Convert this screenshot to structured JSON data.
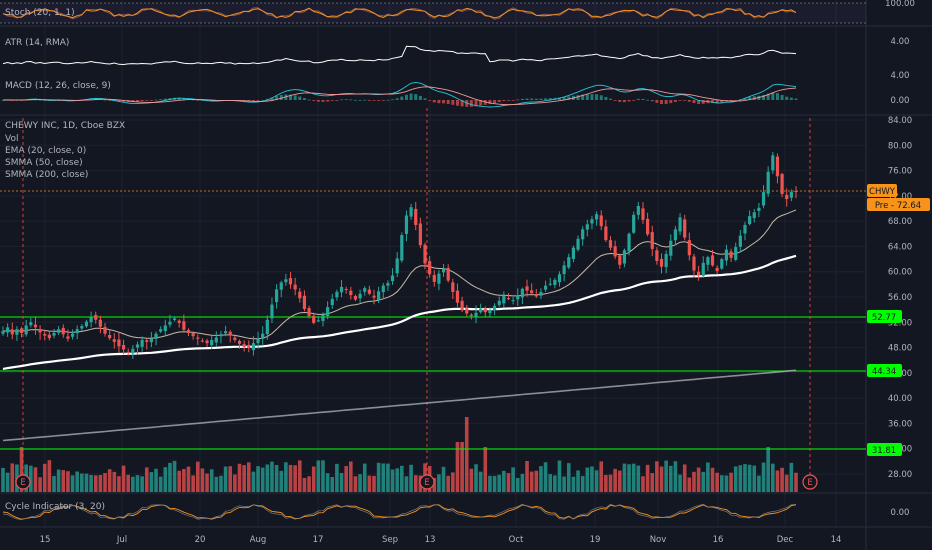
{
  "colors": {
    "background": "#131722",
    "up": "#26a69a",
    "down": "#ef5350",
    "grid": "#1e222d",
    "green_line": "#00ff00",
    "orange": "#f7931a",
    "white": "#ffffff",
    "gray": "#b2b5be"
  },
  "panes": {
    "stoch": {
      "label": "Stoch (20, 1, 1)",
      "tick_labels": [
        "100.00"
      ]
    },
    "atr": {
      "label": "ATR (14, RMA)",
      "tick_labels": [
        "4.00"
      ]
    },
    "macd": {
      "label": "MACD (12, 26, close, 9)",
      "tick_labels": [
        "4.00",
        "0.00"
      ]
    },
    "main": {
      "title": "CHEWY INC, 1D, Cboe BZX",
      "legend": [
        "Vol",
        "EMA (20, close, 0)",
        "SMMA (50, close)",
        "SMMA (200, close)"
      ],
      "tick_labels": [
        "84.00",
        "80.00",
        "76.00",
        "72.00",
        "68.00",
        "64.00",
        "60.00",
        "56.00",
        "52.00",
        "48.00",
        "44.00",
        "40.00",
        "36.00",
        "32.00",
        "28.00"
      ]
    },
    "cycle": {
      "label": "Cycle Indicator (3, 20)",
      "tick_labels": [
        "0.00"
      ]
    }
  },
  "price_tags": {
    "symbol": "CHWY",
    "pre": "Pre - 72.64",
    "levels": [
      "52.77",
      "44.34",
      "31.81"
    ]
  },
  "x_axis": [
    "15",
    "Jul",
    "20",
    "Aug",
    "17",
    "Sep",
    "13",
    "Oct",
    "19",
    "Nov",
    "16",
    "Dec",
    "14"
  ],
  "event_markers": [
    "E",
    "E",
    "E"
  ],
  "chart_data": {
    "type": "candlestick",
    "ylim": [
      24,
      86
    ],
    "horizontal_levels": [
      52.77,
      44.34,
      31.81
    ],
    "dashed_level": 72.64,
    "close": [
      50.6,
      51.2,
      50.1,
      50.9,
      50.3,
      51.5,
      52.0,
      51.2,
      50.4,
      49.9,
      49.5,
      50.3,
      50.9,
      50.1,
      49.4,
      50.2,
      50.9,
      51.4,
      52.1,
      52.8,
      52.4,
      51.3,
      50.2,
      49.5,
      48.9,
      48.2,
      47.7,
      47.3,
      47.8,
      48.5,
      49.2,
      48.9,
      49.4,
      50.2,
      50.9,
      51.5,
      52.1,
      52.6,
      51.9,
      50.8,
      50.3,
      49.8,
      49.4,
      49.0,
      48.7,
      49.2,
      49.6,
      50.1,
      50.6,
      49.9,
      49.2,
      48.6,
      48.1,
      47.9,
      48.7,
      49.4,
      50.2,
      52.4,
      54.8,
      57.2,
      58.3,
      58.8,
      58.0,
      57.2,
      55.8,
      54.1,
      53.0,
      51.9,
      52.3,
      53.2,
      54.4,
      55.7,
      56.8,
      57.6,
      57.2,
      56.3,
      55.6,
      56.5,
      57.4,
      56.5,
      55.9,
      56.9,
      57.8,
      58.2,
      59.4,
      62.1,
      65.8,
      68.9,
      70.2,
      67.4,
      64.2,
      61.3,
      59.6,
      58.4,
      59.7,
      60.5,
      58.6,
      56.8,
      55.1,
      53.9,
      53.4,
      53.0,
      53.5,
      54.2,
      53.6,
      53.9,
      54.6,
      55.4,
      56.2,
      55.8,
      55.5,
      56.2,
      57.3,
      57.0,
      56.6,
      56.1,
      56.8,
      57.8,
      58.1,
      58.7,
      59.6,
      61.0,
      62.3,
      63.8,
      65.2,
      66.7,
      67.5,
      68.3,
      69.1,
      67.2,
      65.0,
      63.8,
      62.4,
      61.1,
      63.4,
      66.0,
      69.0,
      70.4,
      68.2,
      65.9,
      63.6,
      61.7,
      60.8,
      62.8,
      64.9,
      66.7,
      68.6,
      65.4,
      62.6,
      60.2,
      59.4,
      61.4,
      62.3,
      61.0,
      60.1,
      62.0,
      63.5,
      62.2,
      63.9,
      65.7,
      67.4,
      68.8,
      69.4,
      70.1,
      72.6,
      75.8,
      78.4,
      75.1,
      72.3,
      71.5,
      72.6,
      72.64
    ]
  }
}
